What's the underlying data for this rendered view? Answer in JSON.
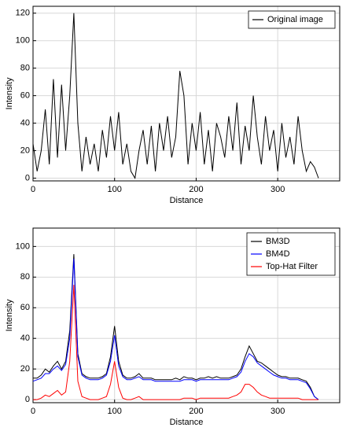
{
  "chart_data": [
    {
      "type": "line",
      "xlabel": "Distance",
      "ylabel": "Intensity",
      "xlim": [
        0,
        376
      ],
      "ylim": [
        -2,
        125
      ],
      "xticks": [
        0,
        100,
        200,
        300
      ],
      "yticks": [
        0,
        20,
        40,
        60,
        80,
        100,
        120
      ],
      "grid": true,
      "legend": "upper right",
      "x": [
        0,
        5,
        10,
        15,
        20,
        25,
        30,
        35,
        40,
        45,
        50,
        55,
        60,
        65,
        70,
        75,
        80,
        85,
        90,
        95,
        100,
        105,
        110,
        115,
        120,
        125,
        130,
        135,
        140,
        145,
        150,
        155,
        160,
        165,
        170,
        175,
        180,
        185,
        190,
        195,
        200,
        205,
        210,
        215,
        220,
        225,
        230,
        235,
        240,
        245,
        250,
        255,
        260,
        265,
        270,
        275,
        280,
        285,
        290,
        295,
        300,
        305,
        310,
        315,
        320,
        325,
        330,
        335,
        340,
        345,
        350
      ],
      "series": [
        {
          "name": "Original image",
          "color": "#000000",
          "values": [
            25,
            5,
            20,
            50,
            10,
            72,
            15,
            68,
            20,
            60,
            120,
            40,
            5,
            30,
            10,
            25,
            5,
            35,
            15,
            45,
            20,
            48,
            10,
            25,
            5,
            0,
            20,
            35,
            10,
            38,
            5,
            40,
            20,
            45,
            15,
            30,
            78,
            60,
            10,
            40,
            20,
            48,
            10,
            35,
            5,
            40,
            30,
            15,
            45,
            20,
            55,
            10,
            38,
            20,
            60,
            30,
            10,
            45,
            20,
            35,
            5,
            40,
            15,
            30,
            10,
            45,
            20,
            5,
            12,
            8,
            0
          ]
        }
      ]
    },
    {
      "type": "line",
      "xlabel": "Distance",
      "ylabel": "Intensity",
      "xlim": [
        0,
        376
      ],
      "ylim": [
        -2,
        112
      ],
      "xticks": [
        0,
        100,
        200,
        300
      ],
      "yticks": [
        0,
        20,
        40,
        60,
        80,
        100
      ],
      "grid": true,
      "legend": "upper right",
      "x": [
        0,
        5,
        10,
        15,
        20,
        25,
        30,
        35,
        40,
        45,
        50,
        55,
        60,
        65,
        70,
        75,
        80,
        85,
        90,
        95,
        100,
        105,
        110,
        115,
        120,
        125,
        130,
        135,
        140,
        145,
        150,
        155,
        160,
        165,
        170,
        175,
        180,
        185,
        190,
        195,
        200,
        205,
        210,
        215,
        220,
        225,
        230,
        235,
        240,
        245,
        250,
        255,
        260,
        265,
        270,
        275,
        280,
        285,
        290,
        295,
        300,
        305,
        310,
        315,
        320,
        325,
        330,
        335,
        340,
        345,
        350
      ],
      "series": [
        {
          "name": "BM3D",
          "color": "#000000",
          "values": [
            14,
            14,
            16,
            20,
            18,
            22,
            25,
            20,
            25,
            45,
            95,
            30,
            17,
            15,
            14,
            14,
            14,
            15,
            17,
            28,
            48,
            25,
            16,
            14,
            14,
            15,
            17,
            14,
            14,
            14,
            13,
            13,
            13,
            13,
            13,
            14,
            13,
            15,
            14,
            14,
            13,
            14,
            14,
            15,
            14,
            15,
            14,
            14,
            14,
            15,
            16,
            20,
            28,
            35,
            30,
            25,
            24,
            22,
            20,
            18,
            16,
            15,
            15,
            14,
            14,
            14,
            13,
            12,
            8,
            2,
            0
          ]
        },
        {
          "name": "BM4D",
          "color": "#0000ff",
          "values": [
            12,
            13,
            14,
            17,
            17,
            20,
            22,
            19,
            23,
            40,
            92,
            28,
            16,
            14,
            13,
            13,
            13,
            14,
            16,
            25,
            42,
            22,
            15,
            13,
            13,
            14,
            15,
            13,
            13,
            13,
            12,
            12,
            12,
            12,
            12,
            12,
            12,
            13,
            13,
            13,
            12,
            13,
            13,
            13,
            13,
            13,
            13,
            13,
            13,
            14,
            15,
            18,
            25,
            30,
            28,
            24,
            22,
            20,
            18,
            16,
            15,
            14,
            14,
            13,
            13,
            13,
            12,
            11,
            7,
            2,
            0
          ]
        },
        {
          "name": "Top-Hat Filter",
          "color": "#ff0000",
          "values": [
            0,
            0,
            1,
            3,
            2,
            4,
            6,
            3,
            5,
            25,
            75,
            12,
            2,
            1,
            0,
            0,
            0,
            1,
            2,
            10,
            25,
            8,
            1,
            0,
            0,
            1,
            2,
            0,
            0,
            0,
            0,
            0,
            0,
            0,
            0,
            0,
            0,
            1,
            1,
            1,
            0,
            1,
            1,
            1,
            1,
            1,
            1,
            1,
            1,
            2,
            3,
            5,
            10,
            10,
            8,
            5,
            3,
            2,
            1,
            1,
            1,
            1,
            1,
            1,
            1,
            1,
            0,
            0,
            0,
            0,
            0
          ]
        }
      ]
    }
  ]
}
